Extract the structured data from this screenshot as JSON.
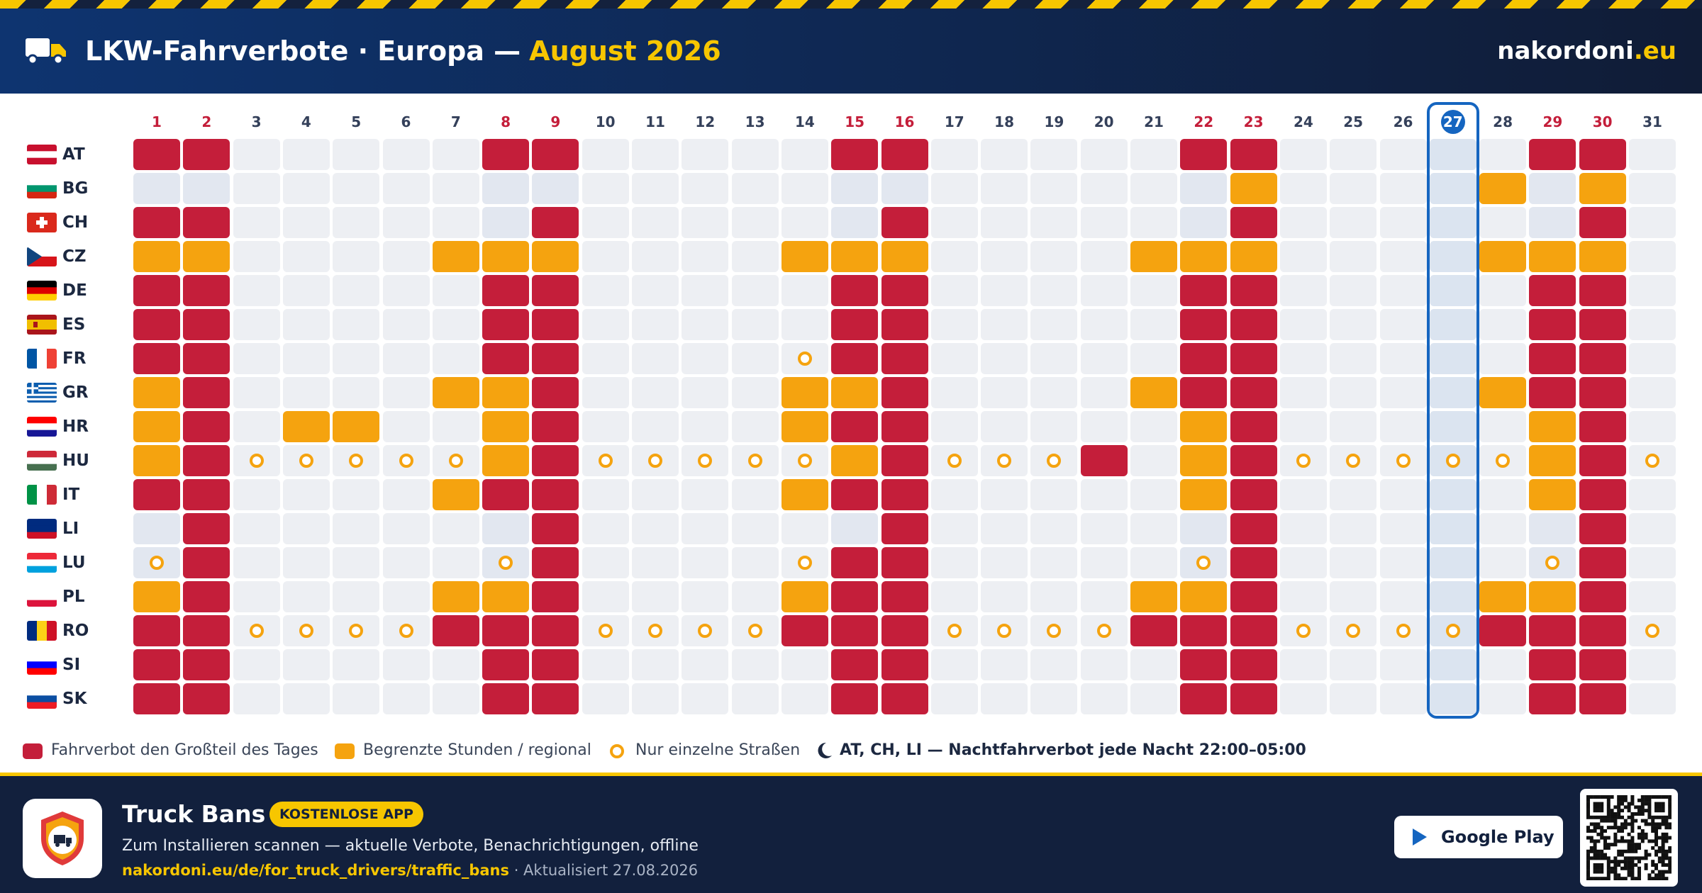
{
  "header": {
    "title": "LKW-Fahrverbote · Europa —",
    "month": "August 2026",
    "brand": "nakordoni",
    "brand_tld": ".eu"
  },
  "days": [
    {
      "label": "1",
      "weekend": true
    },
    {
      "label": "2",
      "weekend": true
    },
    {
      "label": "3"
    },
    {
      "label": "4"
    },
    {
      "label": "5"
    },
    {
      "label": "6"
    },
    {
      "label": "7"
    },
    {
      "label": "8",
      "weekend": true
    },
    {
      "label": "9",
      "weekend": true
    },
    {
      "label": "10"
    },
    {
      "label": "11"
    },
    {
      "label": "12"
    },
    {
      "label": "13"
    },
    {
      "label": "14"
    },
    {
      "label": "15",
      "weekend": true
    },
    {
      "label": "16",
      "weekend": true
    },
    {
      "label": "17"
    },
    {
      "label": "18"
    },
    {
      "label": "19"
    },
    {
      "label": "20"
    },
    {
      "label": "21"
    },
    {
      "label": "22",
      "weekend": true
    },
    {
      "label": "23",
      "weekend": true
    },
    {
      "label": "24"
    },
    {
      "label": "25"
    },
    {
      "label": "26"
    },
    {
      "label": "27",
      "today": true
    },
    {
      "label": "28"
    },
    {
      "label": "29",
      "weekend": true
    },
    {
      "label": "30",
      "weekend": true
    },
    {
      "label": "31"
    }
  ],
  "rows": [
    {
      "code": "AT",
      "cells": "FF.....FF.....FF.....FF.....FF."
    },
    {
      "code": "BG",
      "cells": "......................P....P.P."
    },
    {
      "code": "CH",
      "cells": "FF......F......F......F......F."
    },
    {
      "code": "CZ",
      "cells": "PP....PPP....PPP....PPP....PPP."
    },
    {
      "code": "DE",
      "cells": "FF.....FF.....FF.....FF.....FF."
    },
    {
      "code": "ES",
      "cells": "FF.....FF.....FF.....FF.....FF."
    },
    {
      "code": "FR",
      "cells": "FF.....FF....RFF.....FF.....FF."
    },
    {
      "code": "GR",
      "cells": "PF....PPF....PPF....PFF....PFF."
    },
    {
      "code": "HR",
      "cells": "PF.PP..PF....PFF.....PF.....PF."
    },
    {
      "code": "HU",
      "cells": "PFRRRRRPFRRRRRPFRRRF.PFRRRRRPFR"
    },
    {
      "code": "IT",
      "cells": "FF....PFF....PFF.....PF.....PF."
    },
    {
      "code": "LI",
      "cells": ".F......F......F......F......F."
    },
    {
      "code": "LU",
      "cells": "RF.....RF....RFF.....RF.....RF."
    },
    {
      "code": "PL",
      "cells": "PF....PPF....PFF....PPF....PPF."
    },
    {
      "code": "RO",
      "cells": "FFRRRRFFFRRRRFFFRRRRFFFRRRRFFFR"
    },
    {
      "code": "SI",
      "cells": "FF.....FF.....FF.....FF.....FF."
    },
    {
      "code": "SK",
      "cells": "FF.....FF.....FF.....FF.....FF."
    }
  ],
  "legend": {
    "full": "Fahrverbot den Großteil des Tages",
    "partial": "Begrenzte Stunden / regional",
    "road": "Nur einzelne Straßen",
    "night": "AT, CH, LI — Nachtfahrverbot jede Nacht 22:00–05:00"
  },
  "footer": {
    "app_name": "Truck Bans",
    "badge": "KOSTENLOSE APP",
    "description": "Zum Installieren scannen — aktuelle Verbote, Benachrichtigungen, offline",
    "link": "nakordoni.eu/de/for_truck_drivers/traffic_bans",
    "updated": "· Aktualisiert 27.08.2026",
    "store": "Google Play"
  }
}
